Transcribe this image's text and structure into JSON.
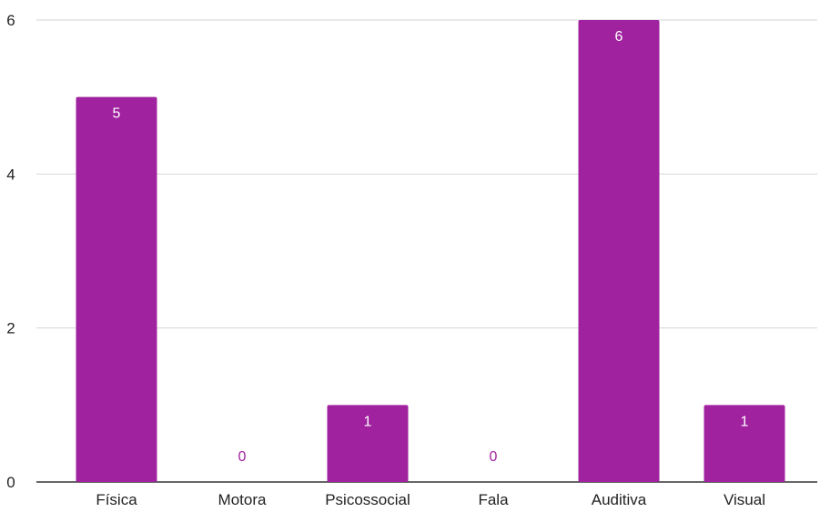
{
  "chart_data": {
    "type": "bar",
    "title": "",
    "xlabel": "",
    "ylabel": "",
    "categories": [
      "Física",
      "Motora",
      "Psicossocial",
      "Fala",
      "Auditiva",
      "Visual"
    ],
    "values": [
      5,
      0,
      1,
      0,
      6,
      1
    ],
    "data_labels": [
      "5",
      "0",
      "1",
      "0",
      "6",
      "1"
    ],
    "ylim": [
      0,
      6
    ],
    "yticks": [
      0,
      2,
      4,
      6
    ],
    "ytick_labels": [
      "0",
      "2",
      "4",
      "6"
    ],
    "grid": true,
    "legend": "none",
    "colors": {
      "bar": "#a0229f",
      "label_inside": "#ffffff",
      "label_zero": "#a0229f",
      "grid": "#d6d6d6",
      "axis": "#333333"
    }
  }
}
